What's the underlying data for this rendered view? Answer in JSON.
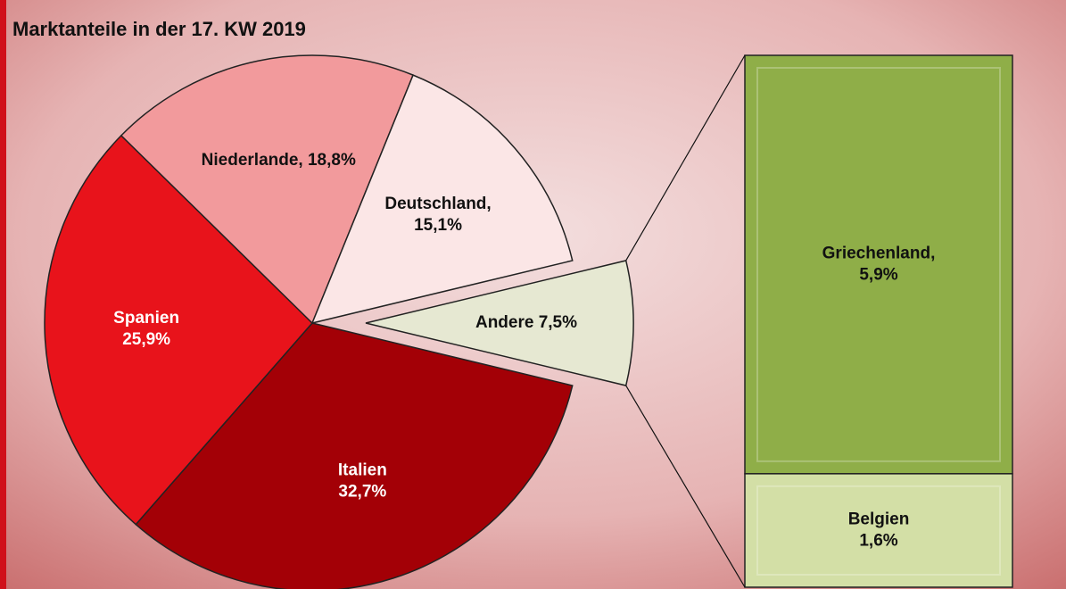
{
  "chart_data": {
    "type": "pie-of-bar",
    "title": "Marktanteile in der 17. KW 2019",
    "values": [
      32.7,
      25.9,
      18.8,
      15.1,
      7.5
    ],
    "value_labels": [
      [
        "Italien",
        "32,7%"
      ],
      [
        "Spanien",
        "25,9%"
      ],
      [
        "Niederlande, 18,8%"
      ],
      [
        "Deutschland,",
        "15,1%"
      ],
      [
        "Andere 7,5%"
      ]
    ],
    "colors": [
      "#a30006",
      "#e8131b",
      "#f29a9c",
      "#fbe6e6",
      "#e6e8d2"
    ],
    "breakdown": {
      "values": [
        5.9,
        1.6
      ],
      "value_labels": [
        [
          "Griechenland,",
          "5,9%"
        ],
        [
          "Belgien",
          "1,6%"
        ]
      ],
      "colors": [
        "#8fae48",
        "#d3dfa6"
      ]
    }
  }
}
